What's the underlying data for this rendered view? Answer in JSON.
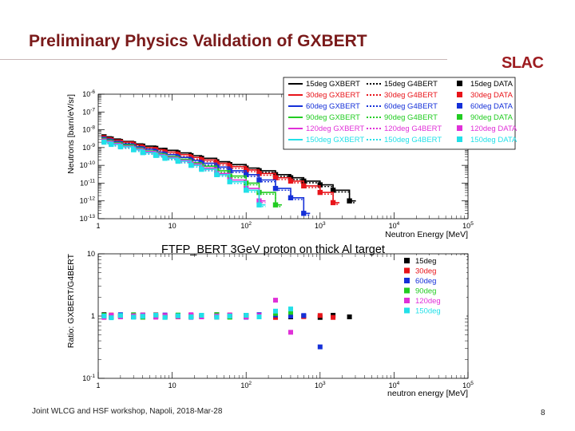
{
  "slide": {
    "title": "Preliminary Physics Validation of GXBERT",
    "logo": "SLAC",
    "footer": "Joint WLCG and HSF workshop, Napoli, 2018-Mar-28",
    "page_number": "8"
  },
  "colors": {
    "title": "#7a1a1a",
    "logo": "#9d1c20",
    "series": {
      "15deg": "#000000",
      "30deg": "#e8141a",
      "60deg": "#1530d8",
      "90deg": "#22cc22",
      "120deg": "#e030d8",
      "150deg": "#22e0e8"
    }
  },
  "chart_data": [
    {
      "type": "line",
      "title": "FTFP_BERT 3GeV proton on thick Al target",
      "xlabel": "Neutron Energy [MeV]",
      "ylabel": "Neutrons [barn/eV/sr]",
      "xscale": "log",
      "yscale": "log",
      "xlim": [
        1,
        100000
      ],
      "ylim": [
        1e-13,
        1e-06
      ],
      "x_ticks": [
        "1",
        "10",
        "10^2",
        "10^3",
        "10^4",
        "10^5"
      ],
      "y_ticks": [
        "10^-13",
        "10^-12",
        "10^-11",
        "10^-10",
        "10^-9",
        "10^-8",
        "10^-7",
        "10^-6"
      ],
      "legend_position": "top-right",
      "legend_columns": [
        [
          "15deg GXBERT",
          "30deg GXBERT",
          "60deg GXBERT",
          "90deg GXBERT",
          "120deg GXBERT",
          "150deg GXBERT"
        ],
        [
          "15deg G4BERT",
          "30deg G4BERT",
          "60deg G4BERT",
          "90deg G4BERT",
          "120deg G4BERT",
          "150deg G4BERT"
        ],
        [
          "15deg DATA",
          "30deg DATA",
          "60deg DATA",
          "90deg DATA",
          "120deg DATA",
          "150deg DATA"
        ]
      ],
      "series": [
        {
          "angle": "15deg",
          "color": "#000000",
          "x": [
            1.2,
            1.5,
            2,
            3,
            4,
            6,
            8,
            12,
            18,
            25,
            40,
            60,
            100,
            150,
            250,
            400,
            600,
            1000,
            1500,
            2500
          ],
          "y": [
            4e-09,
            3e-09,
            2.2e-09,
            1.6e-09,
            1.2e-09,
            9e-10,
            7e-10,
            5e-10,
            3.5e-10,
            2.5e-10,
            1.6e-10,
            1.1e-10,
            7e-11,
            5e-11,
            3e-11,
            2e-11,
            1.3e-11,
            8e-12,
            4e-12,
            1e-12
          ]
        },
        {
          "angle": "30deg",
          "color": "#e8141a",
          "x": [
            1.2,
            1.5,
            2,
            3,
            4,
            6,
            8,
            12,
            18,
            25,
            40,
            60,
            100,
            150,
            250,
            400,
            600,
            1000,
            1500
          ],
          "y": [
            3.5e-09,
            2.6e-09,
            2e-09,
            1.4e-09,
            1e-09,
            7.5e-10,
            5.5e-10,
            4e-10,
            2.8e-10,
            2e-10,
            1.3e-10,
            8.5e-11,
            5.5e-11,
            3.5e-11,
            2e-11,
            1.3e-11,
            7e-12,
            3e-12,
            8e-13
          ]
        },
        {
          "angle": "60deg",
          "color": "#1530d8",
          "x": [
            1.2,
            1.5,
            2,
            3,
            4,
            6,
            8,
            12,
            18,
            25,
            40,
            60,
            100,
            150,
            250,
            400,
            600
          ],
          "y": [
            3e-09,
            2.2e-09,
            1.6e-09,
            1.1e-09,
            8e-10,
            5.5e-10,
            4e-10,
            2.8e-10,
            1.9e-10,
            1.3e-10,
            8e-11,
            5e-11,
            3e-11,
            1.5e-11,
            5e-12,
            1.5e-12,
            2e-13
          ]
        },
        {
          "angle": "90deg",
          "color": "#22cc22",
          "x": [
            1.2,
            1.5,
            2,
            3,
            4,
            6,
            8,
            12,
            18,
            25,
            40,
            60,
            100,
            150,
            250
          ],
          "y": [
            2.6e-09,
            1.9e-09,
            1.4e-09,
            9.5e-10,
            6.5e-10,
            4.5e-10,
            3.2e-10,
            2.2e-10,
            1.4e-10,
            9e-11,
            5e-11,
            2.5e-11,
            1e-11,
            3e-12,
            6e-13
          ]
        },
        {
          "angle": "120deg",
          "color": "#e030d8",
          "x": [
            1.2,
            1.5,
            2,
            3,
            4,
            6,
            8,
            12,
            18,
            25,
            40,
            60,
            100,
            150
          ],
          "y": [
            2.3e-09,
            1.7e-09,
            1.2e-09,
            8.5e-10,
            6e-10,
            4e-10,
            2.8e-10,
            1.9e-10,
            1.2e-10,
            7e-11,
            3.5e-11,
            1.5e-11,
            5e-12,
            1e-12
          ]
        },
        {
          "angle": "150deg",
          "color": "#22e0e8",
          "x": [
            1.2,
            1.5,
            2,
            3,
            4,
            6,
            8,
            12,
            18,
            25,
            40,
            60,
            100,
            150
          ],
          "y": [
            2e-09,
            1.5e-09,
            1.1e-09,
            7.5e-10,
            5.2e-10,
            3.6e-10,
            2.5e-10,
            1.7e-10,
            1e-10,
            6e-11,
            3e-11,
            1.2e-11,
            4e-12,
            6e-13
          ]
        }
      ]
    },
    {
      "type": "scatter",
      "title": "",
      "xlabel": "neutron energy [MeV]",
      "ylabel": "Ratio: GXBERT/G4BERT",
      "xscale": "log",
      "yscale": "log",
      "xlim": [
        1,
        100000
      ],
      "ylim": [
        0.1,
        10
      ],
      "x_ticks": [
        "1",
        "10",
        "10^2",
        "10^3",
        "10^4",
        "10^5"
      ],
      "y_ticks": [
        "10^-1",
        "1",
        "10"
      ],
      "legend_position": "top-right",
      "legend": [
        "15deg",
        "30deg",
        "60deg",
        "90deg",
        "120deg",
        "150deg"
      ],
      "series": [
        {
          "name": "15deg",
          "color": "#000000",
          "x": [
            1.2,
            1.5,
            2,
            3,
            4,
            6,
            8,
            12,
            18,
            25,
            40,
            60,
            100,
            150,
            250,
            400,
            600,
            1000,
            1500,
            2500
          ],
          "y": [
            1.05,
            0.98,
            1.02,
            0.97,
            1.04,
            1.0,
            0.96,
            1.03,
            1.0,
            0.98,
            1.05,
            0.97,
            1.02,
            0.99,
            1.03,
            0.97,
            1.0,
            0.95,
            1.03,
            0.97
          ]
        },
        {
          "name": "30deg",
          "color": "#e8141a",
          "x": [
            1.2,
            1.5,
            2,
            3,
            4,
            6,
            8,
            12,
            18,
            25,
            40,
            60,
            100,
            150,
            250,
            400,
            600,
            1000,
            1500
          ],
          "y": [
            0.97,
            1.04,
            0.99,
            1.02,
            0.96,
            1.05,
            1.0,
            0.97,
            1.03,
            0.99,
            0.96,
            1.04,
            0.98,
            1.02,
            0.95,
            1.03,
            0.98,
            1.02,
            0.95
          ]
        },
        {
          "name": "60deg",
          "color": "#1530d8",
          "x": [
            1.2,
            1.5,
            2,
            3,
            4,
            6,
            8,
            12,
            18,
            25,
            40,
            60,
            100,
            150,
            250,
            400,
            600,
            1000
          ],
          "y": [
            1.02,
            0.96,
            1.05,
            0.98,
            1.01,
            0.97,
            1.04,
            1.0,
            0.96,
            1.03,
            0.99,
            1.02,
            0.96,
            1.05,
            1.04,
            1.0,
            1.02,
            0.32
          ]
        },
        {
          "name": "90deg",
          "color": "#22cc22",
          "x": [
            1.2,
            1.5,
            2,
            3,
            4,
            6,
            8,
            12,
            18,
            25,
            40,
            60,
            100,
            150,
            250,
            400
          ],
          "y": [
            1.03,
            0.97,
            1.0,
            1.05,
            0.96,
            1.02,
            0.98,
            1.04,
            0.97,
            1.01,
            1.05,
            0.96,
            1.02,
            0.98,
            1.1,
            1.15
          ]
        },
        {
          "name": "120deg",
          "color": "#e030d8",
          "x": [
            1.2,
            1.5,
            2,
            3,
            4,
            6,
            8,
            12,
            18,
            25,
            40,
            60,
            100,
            150,
            250,
            400
          ],
          "y": [
            0.95,
            1.03,
            0.97,
            1.01,
            1.04,
            0.96,
            1.02,
            0.98,
            1.05,
            0.97,
            1.0,
            1.04,
            0.97,
            1.02,
            1.8,
            0.55
          ]
        },
        {
          "name": "150deg",
          "color": "#22e0e8",
          "x": [
            1.2,
            1.5,
            2,
            3,
            4,
            6,
            8,
            12,
            18,
            25,
            40,
            60,
            100,
            150,
            250,
            400
          ],
          "y": [
            1.0,
            0.94,
            1.02,
            0.96,
            0.99,
            1.04,
            0.95,
            1.01,
            0.97,
            1.03,
            0.96,
            1.0,
            1.03,
            0.97,
            1.2,
            1.3
          ]
        }
      ]
    }
  ]
}
